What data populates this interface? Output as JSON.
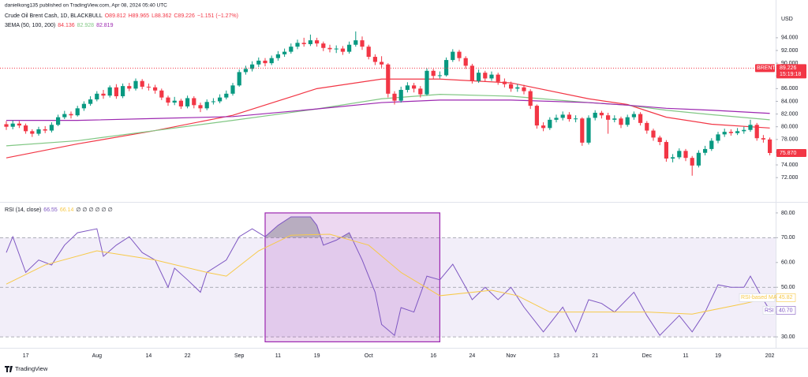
{
  "header": {
    "attribution": "danielkong135 published on TradingView.com, Apr 08, 2024 05:40 UTC",
    "currency": "USD"
  },
  "chart_data": [
    {
      "type": "candlestick",
      "title": "Crude Oil Brent Cash, 1D, BLACKBULL",
      "quote": [
        "O89.812",
        "H89.965",
        "L88.362",
        "C89.226",
        "−1.151 (−1.27%)"
      ],
      "categories": [
        null,
        null,
        null,
        "17",
        null,
        null,
        null,
        null,
        null,
        null,
        null,
        null,
        null,
        null,
        "Aug",
        null,
        null,
        null,
        null,
        null,
        null,
        null,
        "14",
        null,
        null,
        null,
        null,
        null,
        "22",
        null,
        null,
        null,
        null,
        null,
        null,
        null,
        "Sep",
        null,
        null,
        null,
        null,
        null,
        "11",
        null,
        null,
        null,
        null,
        null,
        "19",
        null,
        null,
        null,
        null,
        null,
        null,
        null,
        "Oct",
        null,
        null,
        null,
        null,
        null,
        null,
        null,
        null,
        null,
        "16",
        null,
        null,
        null,
        null,
        null,
        "24",
        null,
        null,
        null,
        null,
        null,
        "Nov",
        null,
        null,
        null,
        null,
        null,
        null,
        "13",
        null,
        null,
        null,
        null,
        null,
        "21",
        null,
        null,
        null,
        null,
        null,
        null,
        null,
        "Dec",
        null,
        null,
        null,
        null,
        null,
        "11",
        null,
        null,
        null,
        null,
        "19",
        null,
        null,
        null,
        null,
        null,
        null,
        null,
        "202"
      ],
      "open": [
        80.4,
        80.0,
        80.5,
        80.2,
        79.3,
        78.9,
        79.6,
        79.4,
        80.3,
        81.5,
        82.0,
        81.8,
        82.9,
        83.6,
        84.3,
        85.2,
        84.9,
        86.2,
        84.8,
        86.4,
        86.0,
        87.2,
        86.3,
        86.2,
        85.7,
        84.6,
        83.8,
        84.1,
        83.2,
        84.5,
        83.4,
        82.9,
        83.9,
        84.0,
        84.6,
        85.2,
        86.5,
        88.6,
        89.1,
        89.8,
        90.4,
        90.0,
        90.8,
        91.4,
        91.8,
        92.6,
        93.2,
        93.0,
        93.6,
        93.1,
        92.4,
        92.2,
        92.3,
        91.8,
        92.9,
        93.6,
        92.6,
        91.0,
        90.2,
        89.8,
        85.2,
        84.1,
        85.8,
        86.5,
        86.0,
        85.1,
        88.8,
        88.0,
        88.1,
        90.5,
        91.8,
        90.8,
        89.6,
        87.2,
        88.5,
        87.6,
        88.2,
        87.1,
        86.7,
        86.0,
        86.2,
        85.6,
        83.3,
        80.2,
        79.8,
        81.1,
        81.4,
        81.9,
        81.2,
        81.3,
        77.5,
        81.4,
        82.2,
        81.8,
        81.1,
        81.3,
        80.3,
        81.5,
        82.0,
        80.6,
        79.4,
        78.3,
        77.6,
        75.0,
        75.2,
        76.2,
        75.1,
        73.9,
        75.9,
        76.5,
        77.8,
        78.8,
        79.2,
        79.0,
        79.3,
        79.5,
        80.3,
        78.2,
        78.0
      ],
      "high": [
        80.9,
        81.0,
        80.9,
        80.5,
        79.6,
        80.0,
        80.1,
        80.7,
        81.9,
        82.5,
        82.4,
        83.3,
        84.0,
        84.8,
        85.6,
        85.8,
        86.5,
        86.7,
        86.8,
        86.9,
        87.6,
        87.5,
        86.8,
        86.6,
        86.0,
        84.9,
        84.7,
        84.4,
        84.9,
        84.8,
        83.8,
        84.3,
        84.5,
        85.1,
        85.7,
        86.9,
        89.0,
        89.6,
        90.3,
        90.9,
        90.8,
        91.2,
        91.9,
        92.3,
        93.1,
        93.7,
        94.0,
        94.5,
        94.0,
        93.4,
        92.9,
        92.8,
        92.7,
        93.4,
        95.0,
        94.2,
        92.9,
        91.4,
        91.1,
        90.0,
        85.6,
        86.3,
        87.0,
        86.9,
        86.4,
        89.2,
        89.1,
        88.7,
        90.9,
        92.2,
        92.1,
        91.1,
        89.9,
        89.0,
        88.8,
        88.7,
        88.5,
        87.6,
        87.1,
        86.7,
        86.6,
        85.9,
        83.5,
        80.7,
        81.5,
        81.9,
        82.4,
        82.3,
        81.8,
        81.5,
        81.8,
        82.6,
        82.5,
        82.2,
        81.8,
        81.6,
        81.9,
        82.4,
        82.3,
        80.9,
        79.7,
        78.6,
        77.9,
        75.7,
        76.6,
        76.5,
        75.4,
        76.3,
        77.0,
        78.2,
        79.2,
        79.7,
        79.6,
        79.8,
        80.0,
        81.1,
        80.6,
        78.7,
        78.3
      ],
      "low": [
        79.5,
        79.6,
        79.8,
        78.9,
        78.4,
        78.6,
        79.0,
        79.1,
        80.1,
        81.2,
        81.3,
        81.6,
        82.5,
        83.3,
        84.0,
        84.4,
        84.6,
        84.4,
        84.5,
        85.6,
        85.7,
        85.9,
        85.7,
        85.2,
        84.2,
        83.3,
        83.4,
        82.8,
        82.9,
        82.9,
        82.3,
        82.6,
        83.5,
        83.7,
        84.3,
        84.9,
        86.3,
        88.2,
        88.7,
        89.4,
        89.5,
        89.7,
        90.4,
        91.0,
        91.5,
        92.2,
        92.6,
        92.7,
        92.6,
        91.9,
        91.7,
        91.6,
        91.3,
        91.5,
        92.6,
        92.1,
        90.6,
        89.7,
        89.3,
        84.6,
        83.5,
        83.8,
        85.4,
        85.4,
        84.6,
        84.9,
        87.5,
        87.6,
        87.9,
        90.2,
        90.3,
        89.1,
        86.8,
        86.9,
        87.1,
        87.2,
        86.6,
        86.2,
        85.5,
        85.5,
        85.1,
        82.8,
        79.7,
        79.3,
        79.5,
        80.7,
        81.0,
        80.8,
        80.7,
        77.0,
        77.2,
        81.0,
        81.3,
        78.9,
        80.7,
        79.8,
        80.0,
        81.1,
        80.2,
        78.9,
        77.8,
        77.1,
        74.5,
        74.4,
        74.9,
        74.6,
        72.3,
        73.6,
        75.5,
        76.2,
        77.4,
        78.4,
        78.6,
        78.7,
        78.9,
        79.2,
        77.8,
        77.5,
        75.5
      ],
      "close": [
        80.0,
        80.5,
        80.2,
        79.3,
        78.9,
        79.6,
        79.4,
        80.3,
        81.5,
        82.0,
        81.8,
        82.9,
        83.6,
        84.3,
        85.2,
        84.9,
        86.2,
        84.8,
        86.4,
        86.0,
        87.2,
        86.3,
        86.2,
        85.7,
        84.6,
        83.8,
        84.1,
        83.2,
        84.5,
        83.4,
        82.9,
        83.9,
        84.0,
        84.6,
        85.2,
        86.5,
        88.6,
        89.1,
        89.8,
        90.4,
        90.0,
        90.8,
        91.4,
        91.8,
        92.6,
        93.2,
        93.0,
        93.6,
        93.1,
        92.4,
        92.2,
        92.3,
        91.8,
        92.9,
        93.6,
        92.6,
        91.0,
        90.2,
        89.8,
        85.2,
        84.1,
        85.8,
        86.5,
        86.0,
        85.1,
        88.8,
        88.0,
        88.1,
        90.5,
        91.8,
        90.8,
        89.6,
        87.2,
        88.5,
        87.6,
        88.2,
        87.1,
        86.7,
        86.0,
        86.2,
        85.6,
        83.3,
        80.2,
        79.8,
        81.1,
        81.4,
        81.9,
        81.2,
        81.3,
        77.5,
        81.4,
        82.2,
        81.8,
        81.1,
        81.3,
        80.3,
        81.5,
        82.0,
        80.6,
        79.4,
        78.3,
        77.6,
        75.0,
        75.2,
        76.2,
        75.1,
        73.9,
        75.9,
        76.5,
        77.8,
        78.8,
        79.2,
        79.0,
        79.3,
        79.5,
        80.3,
        78.2,
        78.0,
        75.87
      ],
      "up_color": "#089981",
      "down_color": "#f23645",
      "ylim": [
        68.3,
        98.7
      ],
      "yticks": [
        {
          "value": 72,
          "label": "72.000"
        },
        {
          "value": 74,
          "label": "74.000"
        },
        {
          "value": 76,
          "label": "76.000"
        },
        {
          "value": 78,
          "label": "78.000"
        },
        {
          "value": 80,
          "label": "80.000"
        },
        {
          "value": 82,
          "label": "82.000"
        },
        {
          "value": 84,
          "label": "84.000"
        },
        {
          "value": 86,
          "label": "86.000"
        },
        {
          "value": 88,
          "label": "88.000"
        },
        {
          "value": 90,
          "label": "90.000"
        },
        {
          "value": 92,
          "label": "92.000"
        },
        {
          "value": 94,
          "label": "94.000"
        }
      ],
      "overlay": {
        "name": "3EMA (50, 100, 200)",
        "last_values": [
          84.136,
          82.928,
          82.819
        ],
        "x": [
          0,
          11,
          23,
          35,
          48,
          58,
          67,
          78,
          90,
          96,
          102,
          109,
          118
        ],
        "series": [
          {
            "color": "#f23645",
            "values": [
              75.1,
              77.3,
              79.4,
              81.8,
              86.0,
              87.5,
              87.5,
              86.9,
              84.4,
              83.5,
              81.5,
              80.4,
              79.8
            ]
          },
          {
            "color": "#81c784",
            "values": [
              77.0,
              77.8,
              79.4,
              81.0,
              82.8,
              84.4,
              85.1,
              84.8,
              83.8,
              83.4,
              82.6,
              81.9,
              81.1
            ]
          },
          {
            "color": "#9c27b0",
            "values": [
              81.0,
              81.0,
              81.3,
              81.6,
              82.8,
              83.8,
              84.2,
              84.2,
              83.8,
              83.4,
              82.9,
              82.6,
              82.1
            ]
          }
        ]
      },
      "price_line": {
        "label": "BRENT",
        "value": 89.226,
        "time": "15:19:18",
        "color": "#f23645"
      },
      "last_price": {
        "value": 75.87,
        "label": "75.870"
      }
    },
    {
      "type": "rsi",
      "title": "RSI (14, close)",
      "legend_values": [
        66.55,
        66.14
      ],
      "placeholders": "∅ ∅ ∅ ∅ ∅ ∅",
      "series": [
        {
          "name": "RSI",
          "color": "#7e57c2",
          "x": [
            0,
            1,
            3,
            5,
            7,
            9,
            11,
            14,
            15,
            17,
            19,
            21,
            23,
            25,
            26,
            28,
            30,
            31,
            34,
            36,
            38,
            40,
            42,
            44,
            47,
            48,
            49,
            51,
            53,
            55,
            57,
            58,
            60,
            61,
            63,
            65,
            67,
            69,
            71,
            72,
            74,
            76,
            78,
            80,
            83,
            86,
            88,
            90,
            92,
            94,
            97,
            99,
            101,
            104,
            106,
            108,
            110,
            112,
            114,
            115,
            117,
            118
          ],
          "values": [
            64,
            70.4,
            56,
            61,
            59,
            67,
            72,
            73.6,
            62.5,
            67,
            70.4,
            64,
            61,
            50,
            57.7,
            53,
            48,
            56,
            61,
            70.4,
            73.6,
            70.4,
            75,
            78.4,
            78.4,
            75,
            67,
            69,
            72,
            61,
            48,
            35,
            30.6,
            41.8,
            40,
            54.5,
            53,
            59.3,
            50,
            45,
            50,
            45,
            50,
            42,
            32,
            42,
            32,
            45,
            43.5,
            40,
            48,
            38.6,
            30.6,
            38.6,
            32,
            40,
            51,
            50,
            50,
            54.5,
            45,
            40.7
          ],
          "last": {
            "value": 40.7,
            "label": "40.70"
          }
        },
        {
          "name": "RSI-based MA",
          "color": "#f7c948",
          "x": [
            0,
            6,
            14,
            23,
            31,
            34,
            39,
            44,
            50,
            56,
            61,
            67,
            75,
            79,
            84,
            92,
            99,
            106,
            114,
            118
          ],
          "values": [
            51.3,
            59,
            64.7,
            61,
            56,
            54.5,
            64.7,
            71,
            71.4,
            67,
            56,
            46.6,
            48.8,
            46.6,
            40,
            40,
            40,
            39.2,
            43.4,
            45.82
          ],
          "last": 45.82
        }
      ],
      "ylim": [
        25.9,
        83.8
      ],
      "yticks": [
        {
          "value": 30,
          "label": "30.00"
        },
        {
          "value": 40,
          "label": "40.00"
        },
        {
          "value": 50,
          "label": "50.00"
        },
        {
          "value": 60,
          "label": "60.00"
        },
        {
          "value": 70,
          "label": "70.00"
        },
        {
          "value": 80,
          "label": "80.00"
        }
      ],
      "levels": [
        70,
        50,
        30
      ],
      "band": [
        30,
        70
      ],
      "band_color": "#7e57c2",
      "highlight": {
        "x": [
          40,
          67
        ],
        "y": [
          28,
          80
        ],
        "color": "#9c27b0"
      }
    }
  ],
  "footer": {
    "brand": "TradingView"
  }
}
